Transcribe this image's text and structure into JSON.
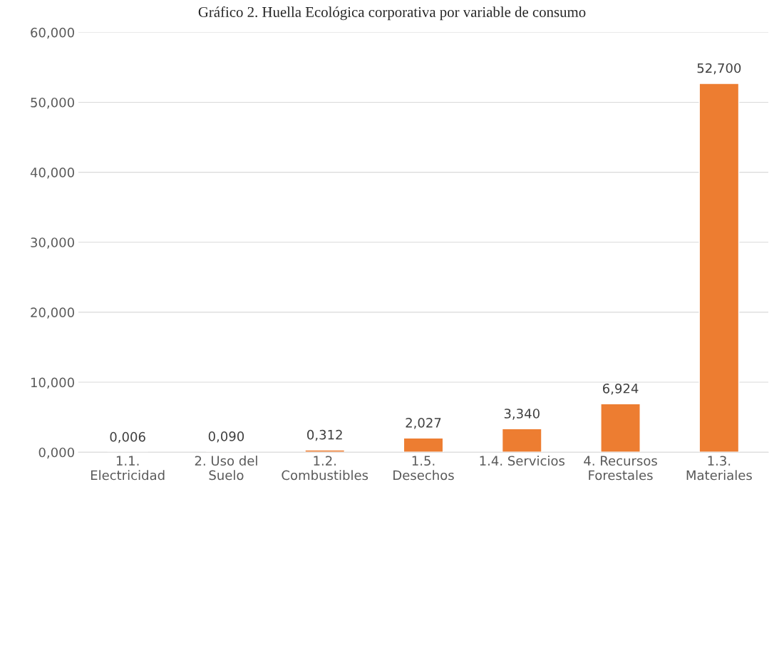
{
  "chart_data": {
    "type": "bar",
    "title": "Gráfico 2. Huella Ecológica corporativa por variable de consumo",
    "categories": [
      "1.1.\nElectricidad",
      "2. Uso del\nSuelo",
      "1.2.\nCombustibles",
      "1.5.\nDesechos",
      "1.4. Servicios",
      "4. Recursos\nForestales",
      "1.3.\nMateriales"
    ],
    "values": [
      0.006,
      0.09,
      0.312,
      2.027,
      3.34,
      6.924,
      52.7
    ],
    "value_labels": [
      "0,006",
      "0,090",
      "0,312",
      "2,027",
      "3,340",
      "6,924",
      "52,700"
    ],
    "color": "#ed7d31",
    "ylim": [
      0,
      60
    ],
    "yticks": [
      {
        "value": 0,
        "label": "0,000"
      },
      {
        "value": 10,
        "label": "10,000"
      },
      {
        "value": 20,
        "label": "20,000"
      },
      {
        "value": 30,
        "label": "30,000"
      },
      {
        "value": 40,
        "label": "40,000"
      },
      {
        "value": 50,
        "label": "50,000"
      },
      {
        "value": 60,
        "label": "60,000"
      }
    ],
    "grid": "y",
    "legend": false
  }
}
